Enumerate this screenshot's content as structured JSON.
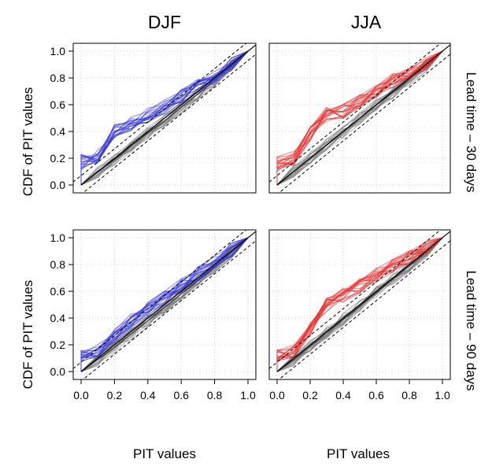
{
  "chart_data": {
    "type": "line",
    "column_titles": [
      "DJF",
      "JJA"
    ],
    "row_labels": [
      "Lead time – 30 days",
      "Lead time – 90 days"
    ],
    "xlabel": "PIT values",
    "ylabel": "CDF of PIT values",
    "xlim": [
      0,
      1
    ],
    "ylim": [
      0,
      1
    ],
    "x_ticks": [
      "0.0",
      "0.2",
      "0.4",
      "0.6",
      "0.8",
      "1.0"
    ],
    "y_ticks": [
      "0.0",
      "0.2",
      "0.4",
      "0.6",
      "0.8",
      "1.0"
    ],
    "grid": "dotted",
    "x_bins": [
      0,
      0.1,
      0.2,
      0.3,
      0.4,
      0.5,
      0.6,
      0.7,
      0.8,
      0.9,
      1.0
    ],
    "reference_lines": {
      "identity": true,
      "band_offset": 0.07
    },
    "colors": {
      "DJF": "#3b3bd6",
      "JJA": "#e83030",
      "reference": "#7a7a7a"
    },
    "panels": [
      {
        "season": "DJF",
        "lead": "30 days",
        "highlighted_series": [
          0,
          0.22,
          0.4,
          0.46,
          0.52,
          0.58,
          0.66,
          0.74,
          0.8,
          0.9,
          1.0
        ],
        "reference_series": [
          0,
          0.1,
          0.19,
          0.29,
          0.39,
          0.48,
          0.58,
          0.68,
          0.78,
          0.89,
          1.0
        ]
      },
      {
        "season": "JJA",
        "lead": "30 days",
        "highlighted_series": [
          0,
          0.2,
          0.38,
          0.53,
          0.55,
          0.62,
          0.7,
          0.78,
          0.84,
          0.91,
          1.0
        ],
        "reference_series": [
          0,
          0.1,
          0.2,
          0.3,
          0.4,
          0.5,
          0.6,
          0.69,
          0.79,
          0.89,
          1.0
        ]
      },
      {
        "season": "DJF",
        "lead": "90 days",
        "highlighted_series": [
          0,
          0.15,
          0.27,
          0.38,
          0.47,
          0.55,
          0.64,
          0.73,
          0.82,
          0.91,
          1.0
        ],
        "reference_series": [
          0,
          0.09,
          0.18,
          0.28,
          0.38,
          0.48,
          0.58,
          0.68,
          0.78,
          0.89,
          1.0
        ]
      },
      {
        "season": "JJA",
        "lead": "90 days",
        "highlighted_series": [
          0,
          0.15,
          0.32,
          0.5,
          0.57,
          0.64,
          0.72,
          0.79,
          0.85,
          0.92,
          1.0
        ],
        "reference_series": [
          0,
          0.09,
          0.19,
          0.29,
          0.39,
          0.49,
          0.59,
          0.69,
          0.79,
          0.89,
          1.0
        ]
      }
    ]
  }
}
